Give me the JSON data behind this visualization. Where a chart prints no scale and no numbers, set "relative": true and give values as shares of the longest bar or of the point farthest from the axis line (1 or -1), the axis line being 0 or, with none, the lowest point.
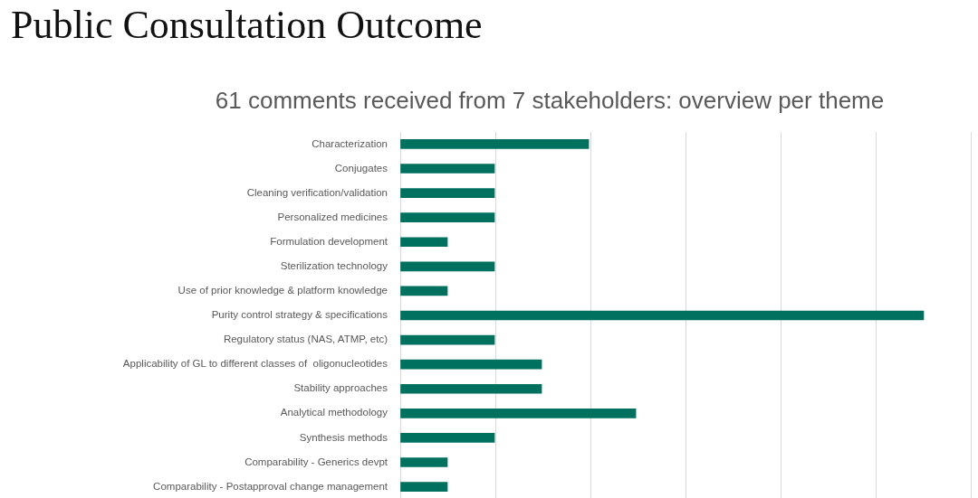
{
  "chart_data": {
    "type": "bar",
    "orientation": "horizontal",
    "relative": true,
    "title": "Public Consultation Outcome",
    "subtitle": "61 comments received from 7 stakeholders: overview per theme",
    "categories": [
      "Characterization",
      "Conjugates",
      "Cleaning verification/validation",
      "Personalized medicines",
      "Formulation development",
      "Sterilization technology",
      "Use of prior knowledge & platform knowledge",
      "Purity control strategy & specifications",
      "Regulatory status (NAS, ATMP, etc)",
      "Applicability of GL to different classes of  oligonucleotides",
      "Stability approaches",
      "Analytical methodology",
      "Synthesis methods",
      "Comparability - Generics devpt",
      "Comparability - Postapproval change management"
    ],
    "values": [
      0.36,
      0.18,
      0.18,
      0.18,
      0.09,
      0.18,
      0.09,
      1,
      0.18,
      0.27,
      0.27,
      0.45,
      0.18,
      0.09,
      0.09
    ],
    "color": "#00715f",
    "grid": "x"
  }
}
